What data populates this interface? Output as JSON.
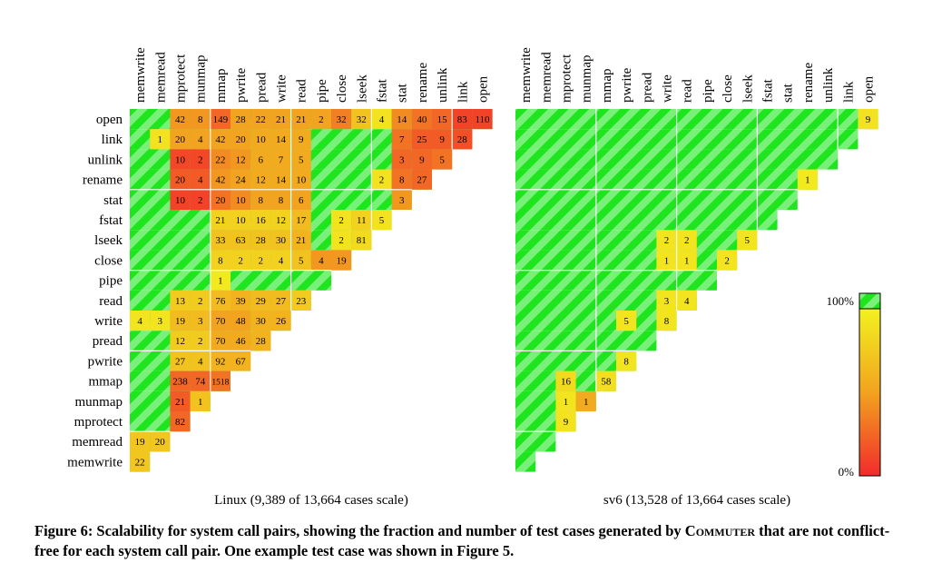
{
  "chart_data": {
    "type": "heatmap",
    "calls": [
      "open",
      "link",
      "unlink",
      "rename",
      "stat",
      "fstat",
      "lseek",
      "close",
      "pipe",
      "read",
      "write",
      "pread",
      "pwrite",
      "mmap",
      "munmap",
      "mprotect",
      "memread",
      "memwrite"
    ],
    "columns": [
      "memwrite",
      "memread",
      "mprotect",
      "munmap",
      "mmap",
      "pwrite",
      "pread",
      "write",
      "read",
      "pipe",
      "close",
      "lseek",
      "fstat",
      "stat",
      "rename",
      "unlink",
      "link",
      "open"
    ],
    "panels": [
      {
        "name": "linux",
        "label": "Linux (9,389 of 13,664 cases scale)",
        "cells": [
          [
            0,
            2,
            "42",
            0.45
          ],
          [
            0,
            3,
            "8",
            0.45
          ],
          [
            0,
            4,
            "149",
            0.25
          ],
          [
            0,
            5,
            "28",
            0.5
          ],
          [
            0,
            6,
            "22",
            0.5
          ],
          [
            0,
            7,
            "21",
            0.5
          ],
          [
            0,
            8,
            "21",
            0.5
          ],
          [
            0,
            9,
            "2",
            0.5
          ],
          [
            0,
            10,
            "32",
            0.35
          ],
          [
            0,
            11,
            "32",
            0.7
          ],
          [
            0,
            12,
            "4",
            0.9
          ],
          [
            0,
            13,
            "14",
            0.4
          ],
          [
            0,
            14,
            "40",
            0.3
          ],
          [
            0,
            15,
            "15",
            0.25
          ],
          [
            0,
            16,
            "83",
            0.1
          ],
          [
            0,
            17,
            "110",
            0.1
          ],
          [
            1,
            1,
            "1",
            0.9
          ],
          [
            1,
            2,
            "20",
            0.5
          ],
          [
            1,
            3,
            "4",
            0.5
          ],
          [
            1,
            4,
            "42",
            0.5
          ],
          [
            1,
            5,
            "20",
            0.5
          ],
          [
            1,
            6,
            "10",
            0.55
          ],
          [
            1,
            7,
            "14",
            0.55
          ],
          [
            1,
            8,
            "9",
            0.55
          ],
          [
            1,
            13,
            "7",
            0.3
          ],
          [
            1,
            14,
            "25",
            0.2
          ],
          [
            1,
            15,
            "9",
            0.2
          ],
          [
            1,
            16,
            "28",
            0.15
          ],
          [
            2,
            2,
            "10",
            0.12
          ],
          [
            2,
            3,
            "2",
            0.12
          ],
          [
            2,
            4,
            "22",
            0.4
          ],
          [
            2,
            5,
            "12",
            0.45
          ],
          [
            2,
            6,
            "6",
            0.55
          ],
          [
            2,
            7,
            "7",
            0.55
          ],
          [
            2,
            8,
            "5",
            0.55
          ],
          [
            2,
            13,
            "3",
            0.25
          ],
          [
            2,
            14,
            "9",
            0.25
          ],
          [
            2,
            15,
            "5",
            0.3
          ],
          [
            3,
            2,
            "20",
            0.2
          ],
          [
            3,
            3,
            "4",
            0.2
          ],
          [
            3,
            4,
            "42",
            0.45
          ],
          [
            3,
            5,
            "24",
            0.5
          ],
          [
            3,
            6,
            "12",
            0.55
          ],
          [
            3,
            7,
            "14",
            0.55
          ],
          [
            3,
            8,
            "10",
            0.55
          ],
          [
            3,
            12,
            "2",
            0.9
          ],
          [
            3,
            13,
            "8",
            0.3
          ],
          [
            3,
            14,
            "27",
            0.25
          ],
          [
            4,
            2,
            "10",
            0.1
          ],
          [
            4,
            3,
            "2",
            0.1
          ],
          [
            4,
            4,
            "20",
            0.3
          ],
          [
            4,
            5,
            "10",
            0.4
          ],
          [
            4,
            6,
            "8",
            0.5
          ],
          [
            4,
            7,
            "8",
            0.5
          ],
          [
            4,
            8,
            "6",
            0.5
          ],
          [
            4,
            13,
            "3",
            0.45
          ],
          [
            5,
            4,
            "21",
            0.8
          ],
          [
            5,
            5,
            "10",
            0.8
          ],
          [
            5,
            6,
            "16",
            0.8
          ],
          [
            5,
            7,
            "12",
            0.8
          ],
          [
            5,
            8,
            "17",
            0.65
          ],
          [
            5,
            10,
            "2",
            0.9
          ],
          [
            5,
            11,
            "11",
            0.8
          ],
          [
            5,
            12,
            "5",
            0.9
          ],
          [
            6,
            4,
            "33",
            0.7
          ],
          [
            6,
            5,
            "63",
            0.7
          ],
          [
            6,
            6,
            "28",
            0.7
          ],
          [
            6,
            7,
            "30",
            0.7
          ],
          [
            6,
            8,
            "21",
            0.6
          ],
          [
            6,
            10,
            "2",
            0.9
          ],
          [
            6,
            11,
            "81",
            0.85
          ],
          [
            7,
            4,
            "8",
            0.8
          ],
          [
            7,
            5,
            "2",
            0.8
          ],
          [
            7,
            6,
            "2",
            0.8
          ],
          [
            7,
            7,
            "4",
            0.8
          ],
          [
            7,
            8,
            "5",
            0.7
          ],
          [
            7,
            9,
            "4",
            0.45
          ],
          [
            7,
            10,
            "19",
            0.45
          ],
          [
            8,
            4,
            "1",
            0.95
          ],
          [
            9,
            2,
            "13",
            0.75
          ],
          [
            9,
            3,
            "2",
            0.75
          ],
          [
            9,
            4,
            "76",
            0.65
          ],
          [
            9,
            5,
            "39",
            0.6
          ],
          [
            9,
            6,
            "29",
            0.65
          ],
          [
            9,
            7,
            "27",
            0.65
          ],
          [
            9,
            8,
            "23",
            0.75
          ],
          [
            10,
            0,
            "4",
            0.92
          ],
          [
            10,
            1,
            "3",
            0.92
          ],
          [
            10,
            2,
            "19",
            0.65
          ],
          [
            10,
            3,
            "3",
            0.65
          ],
          [
            10,
            4,
            "70",
            0.5
          ],
          [
            10,
            5,
            "48",
            0.5
          ],
          [
            10,
            6,
            "30",
            0.6
          ],
          [
            10,
            7,
            "26",
            0.6
          ],
          [
            11,
            2,
            "12",
            0.75
          ],
          [
            11,
            3,
            "2",
            0.75
          ],
          [
            11,
            4,
            "70",
            0.55
          ],
          [
            11,
            5,
            "46",
            0.55
          ],
          [
            11,
            6,
            "28",
            0.6
          ],
          [
            12,
            2,
            "27",
            0.7
          ],
          [
            12,
            3,
            "4",
            0.7
          ],
          [
            12,
            4,
            "92",
            0.6
          ],
          [
            12,
            5,
            "67",
            0.6
          ],
          [
            13,
            2,
            "238",
            0.25
          ],
          [
            13,
            3,
            "74",
            0.25
          ],
          [
            13,
            4,
            "1518",
            0.3
          ],
          [
            14,
            2,
            "21",
            0.2
          ],
          [
            14,
            3,
            "1",
            0.7
          ],
          [
            15,
            2,
            "82",
            0.25
          ],
          [
            16,
            0,
            "19",
            0.72
          ],
          [
            16,
            1,
            "20",
            0.72
          ],
          [
            17,
            0,
            "22",
            0.72
          ]
        ]
      },
      {
        "name": "sv6",
        "label": "sv6 (13,528 of 13,664 cases scale)",
        "cells": [
          [
            0,
            17,
            "9",
            0.9
          ],
          [
            3,
            14,
            "1",
            0.95
          ],
          [
            6,
            7,
            "2",
            0.92
          ],
          [
            6,
            8,
            "2",
            0.92
          ],
          [
            6,
            11,
            "5",
            0.92
          ],
          [
            7,
            7,
            "1",
            0.92
          ],
          [
            7,
            8,
            "1",
            0.92
          ],
          [
            7,
            10,
            "2",
            0.92
          ],
          [
            9,
            7,
            "3",
            0.92
          ],
          [
            9,
            8,
            "4",
            0.92
          ],
          [
            10,
            5,
            "5",
            0.92
          ],
          [
            10,
            7,
            "8",
            0.92
          ],
          [
            12,
            5,
            "8",
            0.92
          ],
          [
            13,
            2,
            "16",
            0.85
          ],
          [
            13,
            4,
            "58",
            0.88
          ],
          [
            14,
            2,
            "1",
            0.92
          ],
          [
            14,
            3,
            "1",
            0.55
          ],
          [
            15,
            2,
            "9",
            0.9
          ]
        ]
      }
    ],
    "legend": {
      "top_label": "100%",
      "bottom_label": "0%"
    }
  },
  "caption": {
    "part1": "Figure 6: Scalability for system call pairs, showing the fraction and number of test cases generated by ",
    "tool": "Commuter",
    "part2": " that are not conflict-free for each system call pair. One example test case was shown in Figure 5."
  },
  "colors": {
    "stripe_green": "#1fe51f",
    "stripe_light": "#7cf27c",
    "red": "#f22b2b",
    "orange": "#f28a2b",
    "yellow": "#f2e91f"
  }
}
